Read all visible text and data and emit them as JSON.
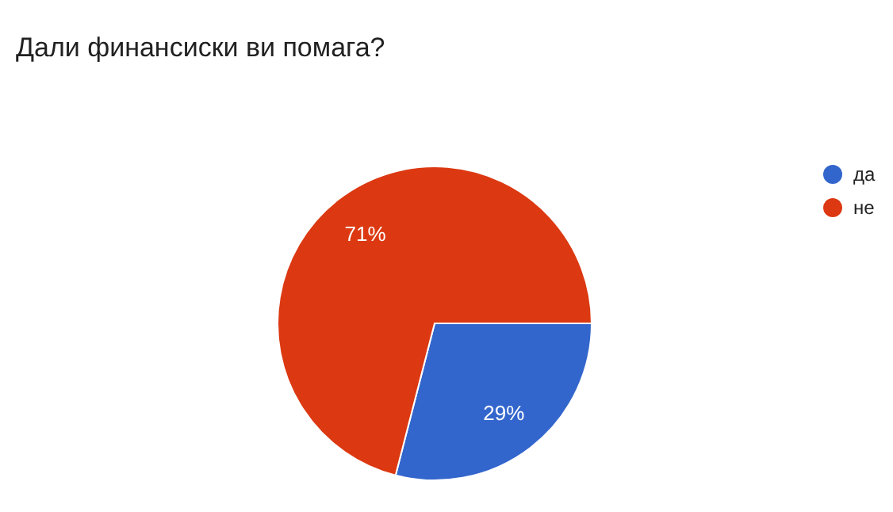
{
  "chart_data": {
    "type": "pie",
    "title": "Дали финансиски ви помага?",
    "categories": [
      "да",
      "не"
    ],
    "values": [
      29,
      71
    ],
    "colors": [
      "#3366cc",
      "#dc3912"
    ],
    "value_labels": [
      "29%",
      "71%"
    ],
    "legend": "top right"
  }
}
